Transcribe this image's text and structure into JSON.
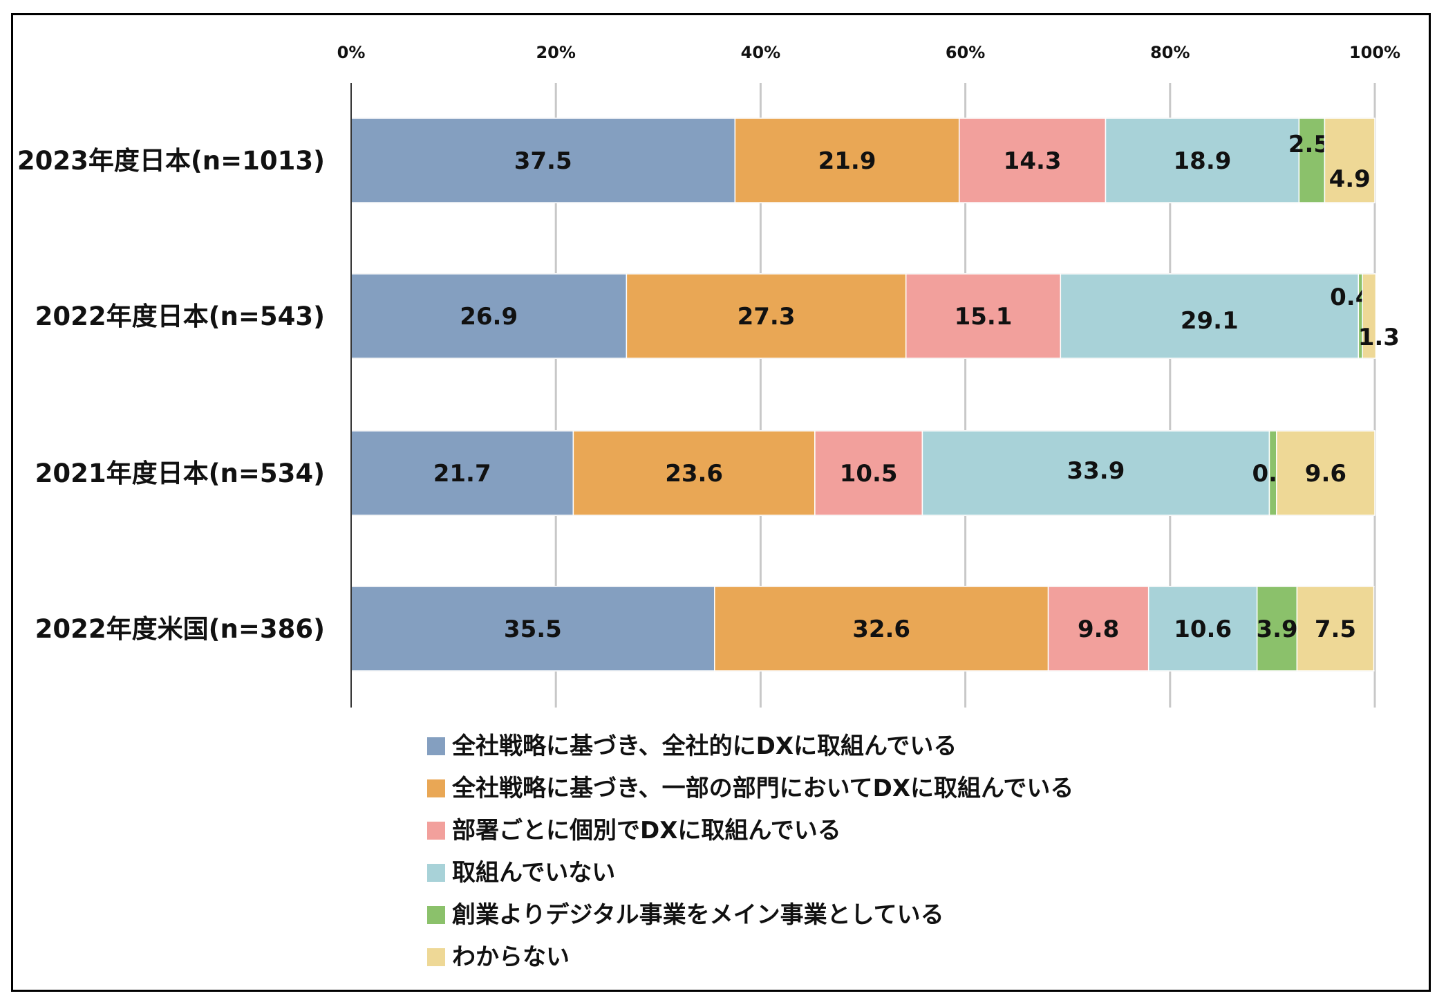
{
  "chart_data": {
    "type": "bar",
    "orientation": "horizontal",
    "stacked": true,
    "title": "",
    "xlabel": "",
    "ylabel": "",
    "xlim": [
      0,
      100
    ],
    "x_ticks": [
      "0%",
      "20%",
      "40%",
      "60%",
      "80%",
      "100%"
    ],
    "grid": true,
    "legend_position": "bottom",
    "categories": [
      "2023年度日本(n=1013)",
      "2022年度日本(n=543)",
      "2021年度日本(n=534)",
      "2022年度米国(n=386)"
    ],
    "series": [
      {
        "name": "全社戦略に基づき、全社的にDXに取組んでいる",
        "color": "#849FC0",
        "values": [
          37.5,
          26.9,
          21.7,
          35.5
        ]
      },
      {
        "name": "全社戦略に基づき、一部の部門においてDXに取組んでいる",
        "color": "#E9A755",
        "values": [
          21.9,
          27.3,
          23.6,
          32.6
        ]
      },
      {
        "name": "部署ごとに個別でDXに取組んでいる",
        "color": "#F2A09C",
        "values": [
          14.3,
          15.1,
          10.5,
          9.8
        ]
      },
      {
        "name": "取組んでいない",
        "color": "#A8D2D8",
        "values": [
          18.9,
          29.1,
          33.9,
          10.6
        ]
      },
      {
        "name": "創業よりデジタル事業をメイン事業としている",
        "color": "#8BC16B",
        "values": [
          2.5,
          0.4,
          0.7,
          3.9
        ]
      },
      {
        "name": "わからない",
        "color": "#EED896",
        "values": [
          4.9,
          1.3,
          9.6,
          7.5
        ]
      }
    ]
  }
}
